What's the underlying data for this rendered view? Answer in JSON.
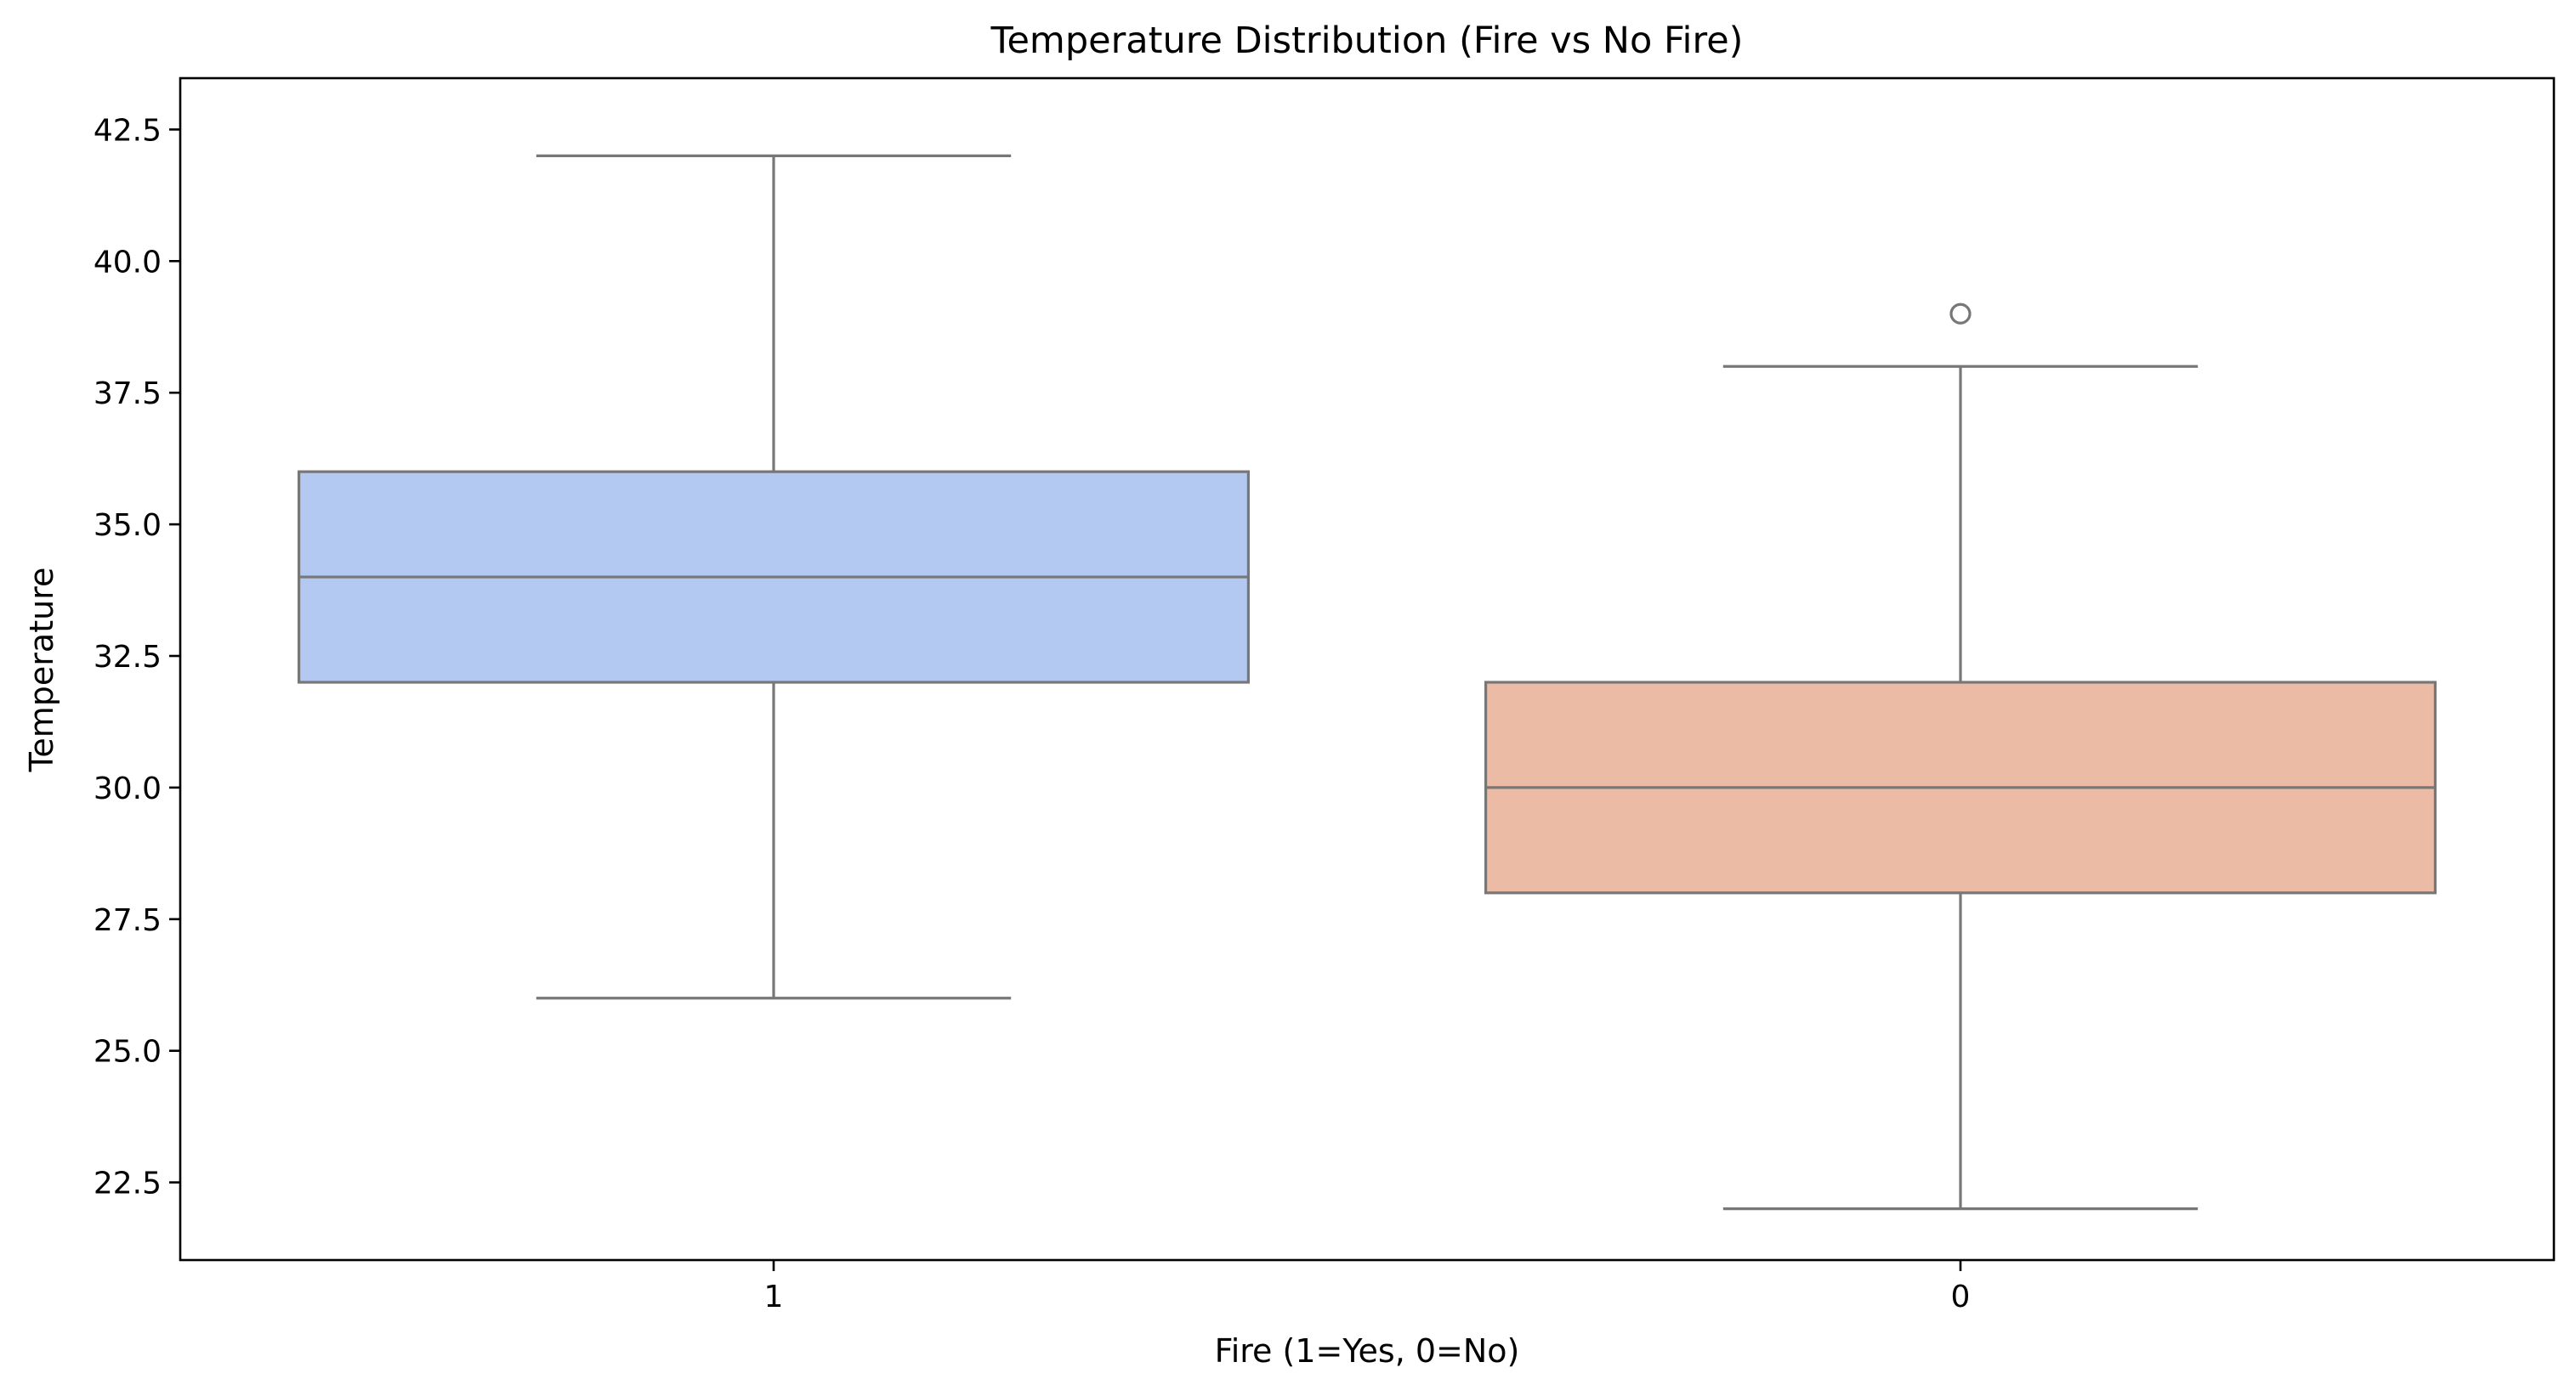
{
  "chart_data": {
    "type": "box",
    "title": "Temperature Distribution (Fire vs No Fire)",
    "xlabel": "Fire (1=Yes, 0=No)",
    "ylabel": "Temperature",
    "categories": [
      "1",
      "0"
    ],
    "ylim": [
      21.025,
      43.475
    ],
    "yticks": [
      22.5,
      25.0,
      27.5,
      30.0,
      32.5,
      35.0,
      37.5,
      40.0,
      42.5
    ],
    "ytick_labels": [
      "22.5",
      "25.0",
      "27.5",
      "30.0",
      "32.5",
      "35.0",
      "37.5",
      "40.0",
      "42.5"
    ],
    "boxes": [
      {
        "category": "1",
        "whisker_low": 26,
        "q1": 32,
        "median": 34,
        "q3": 36,
        "whisker_high": 42,
        "outliers": [],
        "color": "#b3c9f2"
      },
      {
        "category": "0",
        "whisker_low": 22,
        "q1": 28,
        "median": 30,
        "q3": 32,
        "whisker_high": 38,
        "outliers": [
          39
        ],
        "color": "#ecbba5"
      }
    ],
    "line_color": "#777777",
    "grid": false,
    "legend": "none"
  }
}
